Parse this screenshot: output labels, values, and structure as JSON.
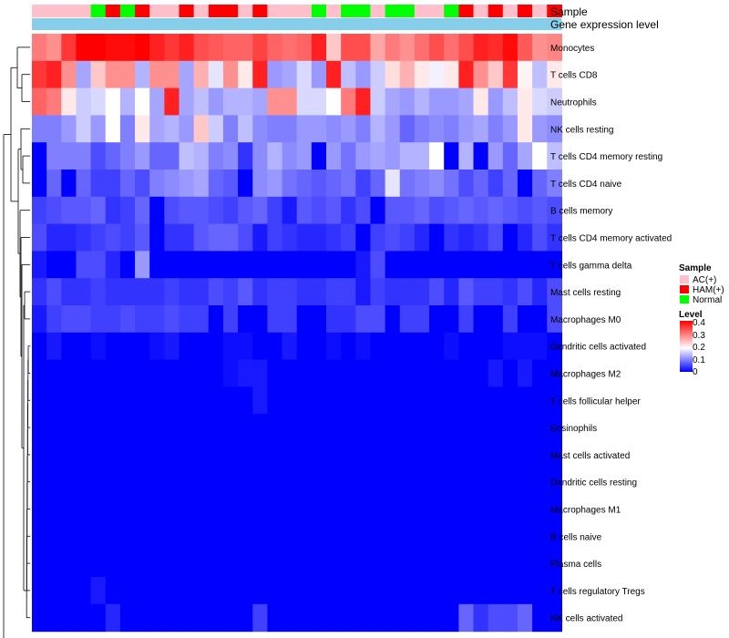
{
  "chart_data": {
    "type": "heatmap",
    "annotation_tracks": [
      {
        "label": "Sample"
      },
      {
        "label": "Gene expression level",
        "color": "#87ceeb"
      }
    ],
    "sample_groups": [
      "AC",
      "AC",
      "AC",
      "AC",
      "Normal",
      "HAM",
      "Normal",
      "HAM",
      "AC",
      "AC",
      "HAM",
      "AC",
      "HAM",
      "HAM",
      "AC",
      "HAM",
      "AC",
      "AC",
      "AC",
      "Normal",
      "AC",
      "Normal",
      "Normal",
      "AC",
      "Normal",
      "Normal",
      "AC",
      "AC",
      "Normal",
      "HAM",
      "AC",
      "HAM",
      "AC",
      "HAM",
      "AC",
      "HAM"
    ],
    "rows": [
      {
        "name": "Monocytes",
        "values": [
          0.32,
          0.3,
          0.38,
          0.43,
          0.43,
          0.42,
          0.42,
          0.43,
          0.4,
          0.38,
          0.4,
          0.36,
          0.35,
          0.34,
          0.34,
          0.37,
          0.34,
          0.33,
          0.34,
          0.4,
          0.25,
          0.36,
          0.36,
          0.28,
          0.32,
          0.3,
          0.33,
          0.36,
          0.33,
          0.36,
          0.4,
          0.39,
          0.42,
          0.35,
          0.3,
          0.31
        ]
      },
      {
        "name": "T cells CD8",
        "values": [
          0.38,
          0.4,
          0.3,
          0.13,
          0.25,
          0.3,
          0.3,
          0.14,
          0.3,
          0.3,
          0.13,
          0.27,
          0.18,
          0.3,
          0.22,
          0.4,
          0.12,
          0.13,
          0.17,
          0.12,
          0.4,
          0.15,
          0.12,
          0.16,
          0.23,
          0.27,
          0.22,
          0.19,
          0.22,
          0.4,
          0.3,
          0.25,
          0.38,
          0.21,
          0.15,
          0.22
        ]
      },
      {
        "name": "Neutrophils",
        "values": [
          0.34,
          0.32,
          0.22,
          0.16,
          0.17,
          0.2,
          0.14,
          0.2,
          0.13,
          0.4,
          0.13,
          0.15,
          0.12,
          0.14,
          0.14,
          0.13,
          0.3,
          0.3,
          0.17,
          0.17,
          0.2,
          0.32,
          0.4,
          0.16,
          0.13,
          0.12,
          0.14,
          0.12,
          0.12,
          0.13,
          0.22,
          0.12,
          0.15,
          0.22,
          0.17,
          0.16
        ]
      },
      {
        "name": "NK cells resting",
        "values": [
          0.1,
          0.1,
          0.12,
          0.16,
          0.12,
          0.2,
          0.1,
          0.22,
          0.13,
          0.14,
          0.12,
          0.25,
          0.16,
          0.1,
          0.15,
          0.11,
          0.1,
          0.1,
          0.12,
          0.12,
          0.11,
          0.12,
          0.1,
          0.14,
          0.12,
          0.08,
          0.1,
          0.11,
          0.1,
          0.12,
          0.13,
          0.1,
          0.12,
          0.22,
          0.12,
          0.11
        ]
      },
      {
        "name": "T cells CD4 memory resting",
        "values": [
          0.0,
          0.1,
          0.1,
          0.1,
          0.06,
          0.08,
          0.1,
          0.12,
          0.08,
          0.08,
          0.15,
          0.14,
          0.1,
          0.11,
          0.04,
          0.11,
          0.14,
          0.11,
          0.12,
          0.0,
          0.12,
          0.09,
          0.12,
          0.13,
          0.12,
          0.14,
          0.14,
          0.2,
          0.0,
          0.14,
          0.0,
          0.12,
          0.08,
          0.13,
          0.2,
          0.15
        ]
      },
      {
        "name": "T cells CD4 naive",
        "values": [
          0.0,
          0.08,
          0.0,
          0.08,
          0.05,
          0.05,
          0.08,
          0.06,
          0.1,
          0.11,
          0.12,
          0.13,
          0.08,
          0.07,
          0.0,
          0.11,
          0.12,
          0.09,
          0.08,
          0.07,
          0.08,
          0.09,
          0.05,
          0.08,
          0.18,
          0.09,
          0.1,
          0.11,
          0.09,
          0.06,
          0.08,
          0.05,
          0.08,
          0.0,
          0.08,
          0.1
        ]
      },
      {
        "name": "B cells memory",
        "values": [
          0.05,
          0.06,
          0.07,
          0.07,
          0.08,
          0.04,
          0.05,
          0.08,
          0.0,
          0.06,
          0.07,
          0.07,
          0.06,
          0.05,
          0.07,
          0.08,
          0.05,
          0.02,
          0.07,
          0.06,
          0.07,
          0.04,
          0.06,
          0.0,
          0.07,
          0.07,
          0.08,
          0.06,
          0.07,
          0.08,
          0.07,
          0.08,
          0.07,
          0.06,
          0.07,
          0.06
        ]
      },
      {
        "name": "T cells CD4 memory activated",
        "values": [
          0.06,
          0.03,
          0.03,
          0.04,
          0.05,
          0.06,
          0.05,
          0.07,
          0.0,
          0.04,
          0.04,
          0.07,
          0.08,
          0.08,
          0.06,
          0.02,
          0.05,
          0.04,
          0.03,
          0.03,
          0.04,
          0.05,
          0.0,
          0.05,
          0.06,
          0.05,
          0.03,
          0.0,
          0.04,
          0.03,
          0.04,
          0.06,
          0.0,
          0.03,
          0.06,
          0.04
        ]
      },
      {
        "name": "T cells gamma delta",
        "values": [
          0.02,
          0.0,
          0.0,
          0.06,
          0.06,
          0.03,
          0.0,
          0.12,
          0.0,
          0.0,
          0.0,
          0.0,
          0.0,
          0.0,
          0.0,
          0.0,
          0.0,
          0.0,
          0.0,
          0.0,
          0.0,
          0.0,
          0.02,
          0.06,
          0.0,
          0.0,
          0.0,
          0.0,
          0.0,
          0.0,
          0.0,
          0.0,
          0.0,
          0.0,
          0.0,
          0.0
        ]
      },
      {
        "name": "Mast cells resting",
        "values": [
          0.04,
          0.06,
          0.04,
          0.04,
          0.05,
          0.04,
          0.04,
          0.04,
          0.04,
          0.05,
          0.04,
          0.04,
          0.06,
          0.05,
          0.07,
          0.04,
          0.05,
          0.05,
          0.04,
          0.04,
          0.05,
          0.05,
          0.02,
          0.05,
          0.04,
          0.04,
          0.04,
          0.06,
          0.03,
          0.07,
          0.05,
          0.05,
          0.04,
          0.06,
          0.03,
          0.06
        ]
      },
      {
        "name": "Macrophages M0",
        "values": [
          0.02,
          0.05,
          0.06,
          0.06,
          0.05,
          0.05,
          0.06,
          0.05,
          0.05,
          0.06,
          0.05,
          0.05,
          0.0,
          0.05,
          0.0,
          0.0,
          0.05,
          0.05,
          0.0,
          0.0,
          0.04,
          0.04,
          0.06,
          0.06,
          0.0,
          0.05,
          0.05,
          0.0,
          0.0,
          0.05,
          0.0,
          0.0,
          0.05,
          0.0,
          0.0,
          0.06
        ]
      },
      {
        "name": "Dendritic cells activated",
        "values": [
          0.0,
          0.02,
          0.0,
          0.0,
          0.01,
          0.0,
          0.0,
          0.0,
          0.01,
          0.02,
          0.0,
          0.0,
          0.0,
          0.01,
          0.01,
          0.0,
          0.0,
          0.02,
          0.0,
          0.0,
          0.01,
          0.0,
          0.01,
          0.0,
          0.0,
          0.0,
          0.0,
          0.0,
          0.01,
          0.0,
          0.0,
          0.0,
          0.01,
          0.01,
          0.01,
          0.0
        ]
      },
      {
        "name": "Macrophages M2",
        "values": [
          0.0,
          0.0,
          0.0,
          0.0,
          0.0,
          0.0,
          0.0,
          0.0,
          0.0,
          0.0,
          0.0,
          0.0,
          0.0,
          0.01,
          0.02,
          0.02,
          0.0,
          0.0,
          0.0,
          0.0,
          0.0,
          0.0,
          0.0,
          0.0,
          0.0,
          0.0,
          0.0,
          0.0,
          0.0,
          0.0,
          0.0,
          0.02,
          0.0,
          0.02,
          0.0,
          0.0
        ]
      },
      {
        "name": "T cells follicular helper",
        "values": [
          0.0,
          0.0,
          0.0,
          0.0,
          0.0,
          0.0,
          0.0,
          0.0,
          0.0,
          0.0,
          0.0,
          0.0,
          0.0,
          0.0,
          0.0,
          0.02,
          0.0,
          0.0,
          0.0,
          0.0,
          0.0,
          0.0,
          0.0,
          0.0,
          0.0,
          0.0,
          0.0,
          0.0,
          0.0,
          0.0,
          0.0,
          0.0,
          0.0,
          0.0,
          0.0,
          0.0
        ]
      },
      {
        "name": "Eosinophils",
        "values": [
          0.0,
          0.0,
          0.0,
          0.0,
          0.0,
          0.0,
          0.0,
          0.0,
          0.0,
          0.0,
          0.0,
          0.0,
          0.0,
          0.0,
          0.0,
          0.0,
          0.0,
          0.0,
          0.0,
          0.0,
          0.0,
          0.0,
          0.0,
          0.0,
          0.0,
          0.0,
          0.0,
          0.0,
          0.0,
          0.0,
          0.0,
          0.0,
          0.0,
          0.0,
          0.0,
          0.0
        ]
      },
      {
        "name": "Mast cells activated",
        "values": [
          0.0,
          0.0,
          0.0,
          0.0,
          0.0,
          0.0,
          0.0,
          0.0,
          0.0,
          0.0,
          0.0,
          0.0,
          0.0,
          0.0,
          0.0,
          0.0,
          0.0,
          0.0,
          0.0,
          0.0,
          0.0,
          0.0,
          0.0,
          0.0,
          0.0,
          0.0,
          0.0,
          0.0,
          0.0,
          0.0,
          0.0,
          0.0,
          0.0,
          0.0,
          0.0,
          0.0
        ]
      },
      {
        "name": "Dendritic cells resting",
        "values": [
          0.0,
          0.0,
          0.0,
          0.0,
          0.0,
          0.0,
          0.0,
          0.0,
          0.0,
          0.0,
          0.0,
          0.0,
          0.0,
          0.0,
          0.0,
          0.0,
          0.0,
          0.0,
          0.0,
          0.0,
          0.0,
          0.0,
          0.0,
          0.0,
          0.0,
          0.0,
          0.0,
          0.0,
          0.0,
          0.0,
          0.0,
          0.0,
          0.0,
          0.0,
          0.0,
          0.0
        ]
      },
      {
        "name": "Macrophages M1",
        "values": [
          0.0,
          0.0,
          0.0,
          0.0,
          0.0,
          0.0,
          0.0,
          0.0,
          0.0,
          0.0,
          0.0,
          0.0,
          0.0,
          0.0,
          0.0,
          0.0,
          0.0,
          0.0,
          0.0,
          0.0,
          0.0,
          0.0,
          0.0,
          0.0,
          0.0,
          0.0,
          0.0,
          0.0,
          0.0,
          0.0,
          0.0,
          0.0,
          0.0,
          0.0,
          0.0,
          0.0
        ]
      },
      {
        "name": "B cells naive",
        "values": [
          0.0,
          0.0,
          0.0,
          0.0,
          0.0,
          0.0,
          0.0,
          0.0,
          0.0,
          0.0,
          0.0,
          0.0,
          0.0,
          0.0,
          0.0,
          0.0,
          0.0,
          0.0,
          0.0,
          0.0,
          0.0,
          0.0,
          0.0,
          0.0,
          0.0,
          0.0,
          0.0,
          0.0,
          0.0,
          0.0,
          0.0,
          0.0,
          0.0,
          0.0,
          0.0,
          0.0
        ]
      },
      {
        "name": "Plasma cells",
        "values": [
          0.0,
          0.0,
          0.0,
          0.0,
          0.0,
          0.0,
          0.0,
          0.0,
          0.0,
          0.0,
          0.0,
          0.0,
          0.0,
          0.0,
          0.0,
          0.0,
          0.0,
          0.0,
          0.0,
          0.0,
          0.0,
          0.0,
          0.0,
          0.0,
          0.0,
          0.0,
          0.0,
          0.0,
          0.0,
          0.0,
          0.0,
          0.0,
          0.0,
          0.0,
          0.0,
          0.0
        ]
      },
      {
        "name": "T cells regulatory  Tregs",
        "values": [
          0.0,
          0.0,
          0.0,
          0.0,
          0.02,
          0.0,
          0.0,
          0.0,
          0.0,
          0.0,
          0.0,
          0.0,
          0.0,
          0.0,
          0.0,
          0.0,
          0.0,
          0.0,
          0.0,
          0.0,
          0.0,
          0.0,
          0.0,
          0.0,
          0.0,
          0.0,
          0.0,
          0.0,
          0.0,
          0.0,
          0.0,
          0.0,
          0.0,
          0.0,
          0.0,
          0.0
        ]
      },
      {
        "name": "NK cells activated",
        "values": [
          0.0,
          0.0,
          0.0,
          0.0,
          0.0,
          0.03,
          0.0,
          0.0,
          0.0,
          0.0,
          0.0,
          0.0,
          0.0,
          0.0,
          0.0,
          0.05,
          0.0,
          0.0,
          0.0,
          0.0,
          0.0,
          0.0,
          0.0,
          0.0,
          0.0,
          0.0,
          0.0,
          0.0,
          0.0,
          0.08,
          0.04,
          0.06,
          0.06,
          0.08,
          0.0,
          0.0
        ]
      }
    ],
    "legend": {
      "sample": {
        "title": "Sample",
        "entries": [
          {
            "label": "AC(+)",
            "group": "AC",
            "color": "#ffc0cb"
          },
          {
            "label": "HAM(+)",
            "group": "HAM",
            "color": "#ff0000"
          },
          {
            "label": "Normal",
            "group": "Normal",
            "color": "#00ff00"
          }
        ]
      },
      "level": {
        "title": "Level",
        "ticks": [
          "0.4",
          "0.3",
          "0.2",
          "0.1",
          "0"
        ],
        "range": [
          0,
          0.43
        ]
      }
    },
    "color_scale": {
      "low": "#0000ff",
      "mid": "#ffffff",
      "high": "#ff0000",
      "mid_value": 0.2,
      "max_value": 0.43
    }
  }
}
